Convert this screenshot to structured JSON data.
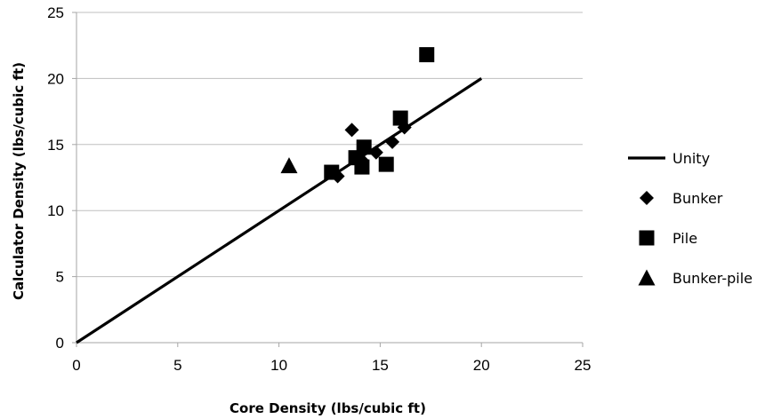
{
  "chart_data": {
    "type": "scatter",
    "title": "",
    "xlabel": "Core Density (lbs/cubic ft)",
    "ylabel": "Calculator Density (lbs/cubic ft)",
    "xlim": [
      0,
      25
    ],
    "ylim": [
      0,
      25
    ],
    "xticks": [
      "0",
      "5",
      "10",
      "15",
      "20",
      "25"
    ],
    "yticks": [
      "0",
      "5",
      "10",
      "15",
      "20",
      "25"
    ],
    "grid": "horizontal",
    "legend_position": "right",
    "colors": {
      "marker": "#000000",
      "line": "#000000",
      "grid": "#bfbfbf"
    },
    "series": [
      {
        "name": "Unity",
        "kind": "line",
        "x": [
          0,
          20
        ],
        "y": [
          0,
          20
        ]
      },
      {
        "name": "Bunker",
        "kind": "diamond",
        "x": [
          13.6,
          12.9,
          14.1,
          14.8,
          15.6,
          16.2
        ],
        "y": [
          16.1,
          12.6,
          13.8,
          14.4,
          15.2,
          16.3
        ]
      },
      {
        "name": "Pile",
        "kind": "square",
        "x": [
          12.6,
          13.8,
          14.1,
          14.2,
          15.3,
          16.0,
          17.3
        ],
        "y": [
          12.9,
          14.0,
          13.3,
          14.8,
          13.5,
          17.0,
          21.8
        ]
      },
      {
        "name": "Bunker-pile",
        "kind": "triangle",
        "x": [
          10.5
        ],
        "y": [
          13.4
        ]
      }
    ]
  }
}
